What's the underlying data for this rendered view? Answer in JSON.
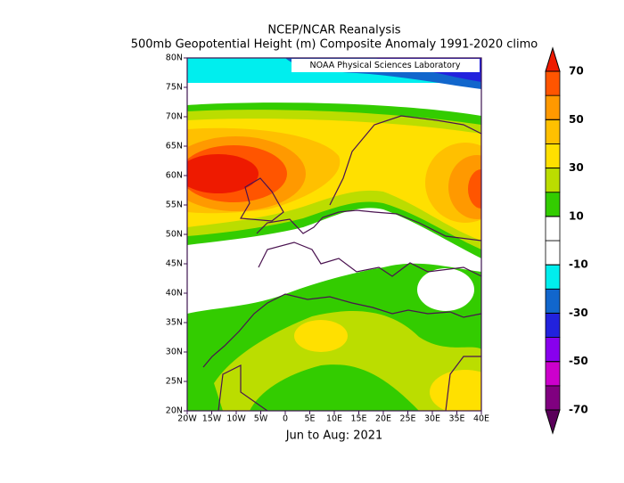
{
  "map": {
    "title": "NCEP/NCAR Reanalysis",
    "subtitle": "500mb Geopotential Height (m) Composite Anomaly 1991-2020 climo",
    "credit": "NOAA Physical Sciences Laboratory",
    "footer": "Jun to Aug: 2021",
    "xlim": [
      -20,
      40
    ],
    "ylim": [
      20,
      80
    ],
    "xticks": [
      {
        "value": -20,
        "label": "20W"
      },
      {
        "value": -15,
        "label": "15W"
      },
      {
        "value": -10,
        "label": "10W"
      },
      {
        "value": -5,
        "label": "5W"
      },
      0,
      {
        "value": 5,
        "label": "5E"
      },
      {
        "value": 10,
        "label": "10E"
      },
      {
        "value": 15,
        "label": "15E"
      },
      {
        "value": 20,
        "label": "20E"
      },
      {
        "value": 25,
        "label": "25E"
      },
      {
        "value": 30,
        "label": "30E"
      },
      {
        "value": 35,
        "label": "35E"
      },
      {
        "value": 40,
        "label": "40E"
      }
    ],
    "yticks": [
      {
        "value": 20,
        "label": "20N"
      },
      {
        "value": 25,
        "label": "25N"
      },
      {
        "value": 30,
        "label": "30N"
      },
      {
        "value": 35,
        "label": "35N"
      },
      {
        "value": 40,
        "label": "40N"
      },
      {
        "value": 45,
        "label": "45N"
      },
      {
        "value": 50,
        "label": "50N"
      },
      {
        "value": 55,
        "label": "55N"
      },
      {
        "value": 60,
        "label": "60N"
      },
      {
        "value": 65,
        "label": "65N"
      },
      {
        "value": 70,
        "label": "70N"
      },
      {
        "value": 75,
        "label": "75N"
      },
      {
        "value": 80,
        "label": "80N"
      }
    ],
    "colorbar": {
      "ticks": [
        -70,
        -50,
        -30,
        -10,
        10,
        30,
        50,
        70
      ],
      "colors": [
        "#5a005a",
        "#800080",
        "#cc00cc",
        "#8800ee",
        "#2222dd",
        "#1166cc",
        "#00eeee",
        "#ffffff",
        "#ffffff",
        "#33cc00",
        "#bbdd00",
        "#ffe000",
        "#ffc000",
        "#ff9900",
        "#ff5500",
        "#ee1a00"
      ]
    }
  }
}
